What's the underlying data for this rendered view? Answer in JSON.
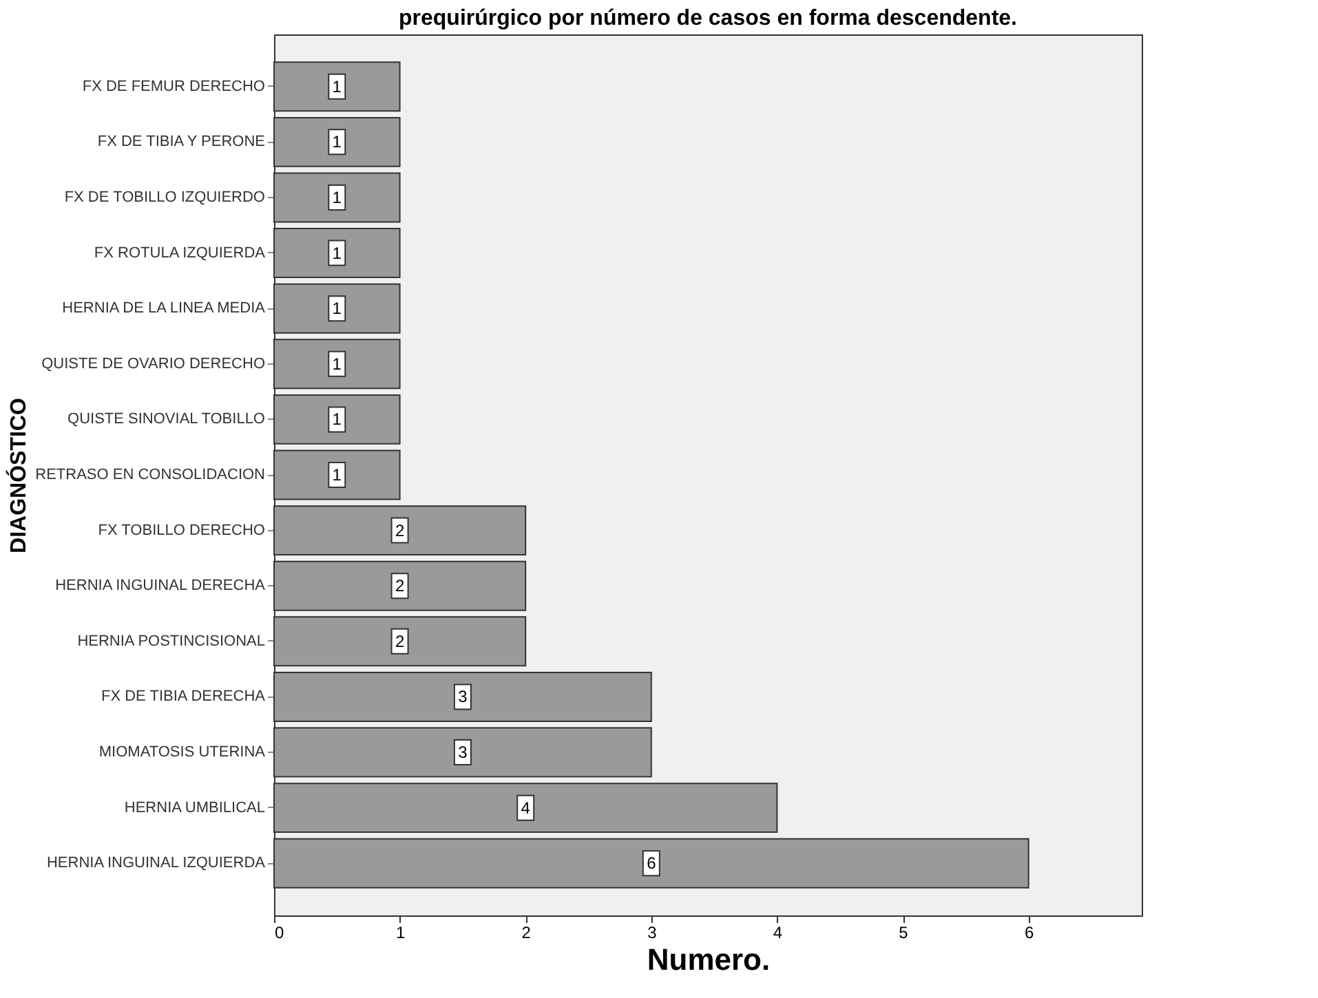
{
  "chart_data": {
    "type": "bar",
    "orientation": "horizontal",
    "title": "prequirúrgico por número de casos en forma descendente.",
    "xlabel": "Numero.",
    "ylabel": "DIAGNÓSTICO",
    "categories": [
      "FX DE FEMUR DERECHO",
      "FX DE TIBIA Y PERONE",
      "FX DE TOBILLO IZQUIERDO",
      "FX ROTULA IZQUIERDA",
      "HERNIA DE LA LINEA MEDIA",
      "QUISTE DE OVARIO DERECHO",
      "QUISTE SINOVIAL TOBILLO",
      "RETRASO EN CONSOLIDACION",
      "FX TOBILLO DERECHO",
      "HERNIA INGUINAL DERECHA",
      "HERNIA POSTINCISIONAL",
      "FX DE TIBIA DERECHA",
      "MIOMATOSIS UTERINA",
      "HERNIA UMBILICAL",
      "HERNIA INGUINAL IZQUIERDA"
    ],
    "values": [
      1,
      1,
      1,
      1,
      1,
      1,
      1,
      1,
      2,
      2,
      2,
      3,
      3,
      4,
      6
    ],
    "color": "#9a9a9a",
    "xlim": [
      0,
      6.9
    ],
    "xticks": [
      0,
      1,
      2,
      3,
      4,
      5,
      6
    ],
    "data_labels": true,
    "grid": false
  }
}
